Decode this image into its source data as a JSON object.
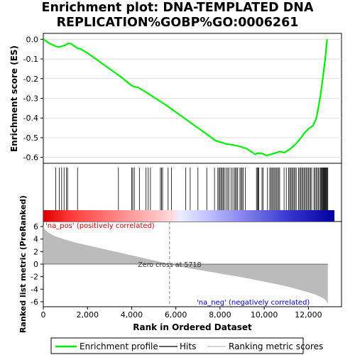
{
  "title_line1": "Enrichment plot: DNA‐TEMPLATED DNA",
  "title_line2": "REPLICATION%GOBP%GO:0006261",
  "colors": {
    "es_line": "#00ee00",
    "hits": "#000000",
    "metric_fill": "#bbbbbb",
    "pos_label": "#cc0000",
    "neg_label": "#0000cc"
  },
  "chart_data": [
    {
      "type": "line",
      "panel": "enrichment-score",
      "ylabel": "Enrichment score (ES)",
      "xlim": [
        0,
        13500
      ],
      "ylim": [
        -0.63,
        0.03
      ],
      "y_ticks": [
        0.0,
        -0.1,
        -0.2,
        -0.3,
        -0.4,
        -0.5,
        -0.6
      ],
      "y_tick_labels": [
        "0.0",
        "-0.1",
        "-0.2",
        "-0.3",
        "-0.4",
        "-0.5",
        "-0.6"
      ],
      "series": [
        {
          "name": "Enrichment profile",
          "x": [
            0,
            300,
            550,
            700,
            850,
            1000,
            1100,
            1250,
            1400,
            1550,
            1700,
            2000,
            2500,
            3000,
            3500,
            4000,
            4100,
            4300,
            4600,
            5000,
            5500,
            6000,
            6500,
            7000,
            7500,
            7800,
            8000,
            8300,
            8600,
            8800,
            9000,
            9200,
            9400,
            9600,
            9700,
            9900,
            10100,
            10300,
            10500,
            10700,
            10900,
            11000,
            11200,
            11400,
            11600,
            11800,
            12000,
            12200,
            12350,
            12450,
            12550,
            12650,
            12750,
            12850
          ],
          "y": [
            0.0,
            -0.022,
            -0.035,
            -0.04,
            -0.035,
            -0.03,
            -0.022,
            -0.022,
            -0.035,
            -0.045,
            -0.05,
            -0.07,
            -0.11,
            -0.15,
            -0.19,
            -0.235,
            -0.24,
            -0.245,
            -0.265,
            -0.295,
            -0.33,
            -0.37,
            -0.41,
            -0.45,
            -0.49,
            -0.515,
            -0.522,
            -0.532,
            -0.537,
            -0.542,
            -0.548,
            -0.555,
            -0.57,
            -0.585,
            -0.578,
            -0.58,
            -0.59,
            -0.585,
            -0.578,
            -0.57,
            -0.575,
            -0.57,
            -0.555,
            -0.535,
            -0.51,
            -0.48,
            -0.455,
            -0.44,
            -0.405,
            -0.35,
            -0.285,
            -0.2,
            -0.11,
            0.0
          ]
        }
      ]
    },
    {
      "type": "scatter",
      "panel": "hits",
      "legend_name": "Hits",
      "positions": [
        560,
        720,
        830,
        940,
        1050,
        1100,
        1550,
        3400,
        4000,
        4050,
        4120,
        4350,
        4650,
        4750,
        4850,
        5300,
        5350,
        5400,
        5650,
        5800,
        6450,
        6650,
        7000,
        7400,
        7750,
        7900,
        7950,
        8000,
        8050,
        8100,
        8150,
        8200,
        8280,
        8350,
        8400,
        8500,
        8580,
        8650,
        8700,
        8750,
        8800,
        8900,
        8950,
        9000,
        9050,
        9150,
        9650,
        9700,
        9720,
        9750,
        9900,
        9950,
        10150,
        10250,
        10300,
        10350,
        10400,
        10450,
        10500,
        10550,
        10600,
        10650,
        10700,
        10900,
        11000,
        11100,
        11150,
        11200,
        11250,
        11300,
        11350,
        11400,
        11450,
        11550,
        11600,
        11650,
        11700,
        11750,
        11800,
        11850,
        11900,
        11950,
        12000,
        12050,
        12100,
        12150,
        12250,
        12300,
        12350,
        12400,
        12450,
        12500,
        12550,
        12580,
        12620,
        12650,
        12680,
        12700,
        12730,
        12760,
        12790,
        12820,
        12850,
        12880
      ]
    },
    {
      "type": "area",
      "panel": "ranked-list-metric",
      "xlabel": "Rank in Ordered Dataset",
      "ylabel": "Ranked list metric (PreRanked)",
      "xlim": [
        0,
        13500
      ],
      "ylim": [
        -6.8,
        6.8
      ],
      "x_ticks": [
        0,
        2000,
        4000,
        6000,
        8000,
        10000,
        12000
      ],
      "x_tick_labels": [
        "0",
        "2,000",
        "4,000",
        "6,000",
        "8,000",
        "10,000",
        "12,000"
      ],
      "y_ticks": [
        6,
        4,
        2,
        0,
        -2,
        -4,
        -6
      ],
      "y_tick_labels": [
        "6",
        "4",
        "2",
        "0",
        "-2",
        "-4",
        "-6"
      ],
      "zero_cross": 5718,
      "series": [
        {
          "name": "Ranking metric scores",
          "x": [
            0,
            50,
            200,
            500,
            1000,
            1500,
            2000,
            2500,
            3000,
            3500,
            4000,
            4500,
            5000,
            5500,
            5718,
            6000,
            6500,
            7000,
            7500,
            8000,
            8500,
            9000,
            9500,
            10000,
            10500,
            11000,
            11500,
            12000,
            12300,
            12500,
            12700,
            12800,
            12850,
            12880
          ],
          "y": [
            6.2,
            5.6,
            5.1,
            4.5,
            3.9,
            3.4,
            3.0,
            2.6,
            2.2,
            1.8,
            1.4,
            1.0,
            0.6,
            0.2,
            0.0,
            -0.25,
            -0.6,
            -0.9,
            -1.2,
            -1.5,
            -1.8,
            -2.1,
            -2.45,
            -2.8,
            -3.15,
            -3.55,
            -4.0,
            -4.5,
            -4.85,
            -5.15,
            -5.5,
            -5.8,
            -6.1,
            -6.4
          ]
        }
      ],
      "annotations": {
        "zero_cross": "Zero cross at 5718",
        "pos": "'na_pos' (positively correlated)",
        "neg": "'na_neg' (negatively correlated)"
      }
    }
  ],
  "legend": {
    "enrichment": "Enrichment profile",
    "hits": "Hits",
    "metric": "Ranking metric scores"
  }
}
